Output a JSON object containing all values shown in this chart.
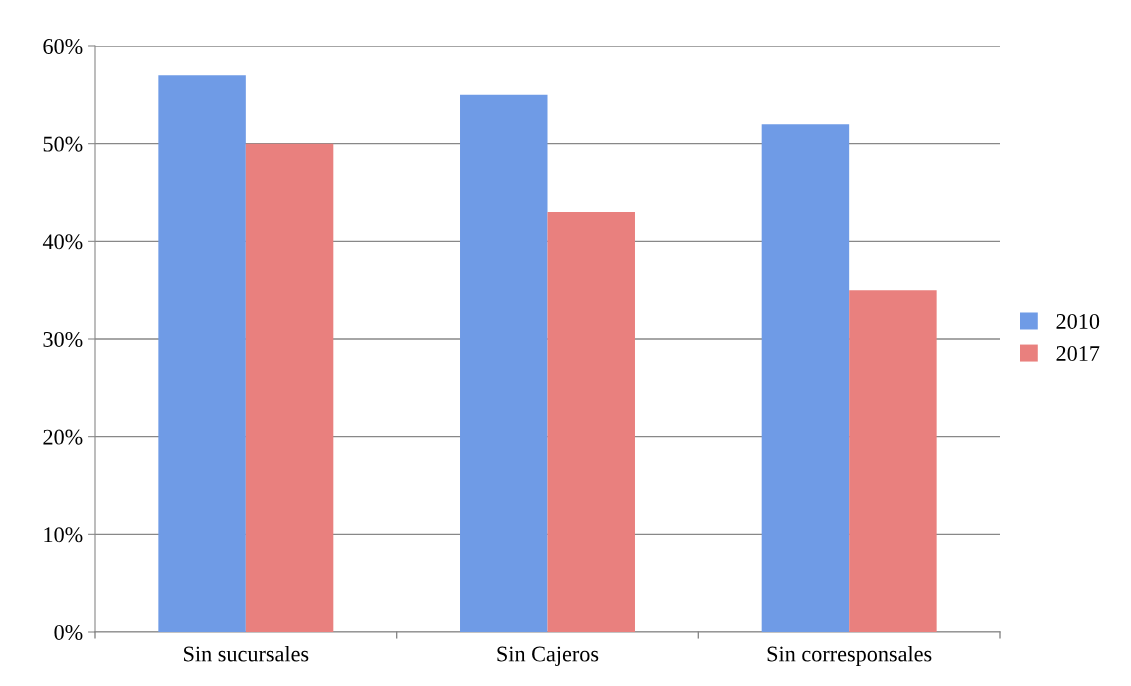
{
  "chart_data": {
    "type": "bar",
    "categories": [
      "Sin sucursales",
      "Sin Cajeros",
      "Sin corresponsales"
    ],
    "series": [
      {
        "name": "2010",
        "color": "#6f9be6",
        "values": [
          57,
          55,
          52
        ]
      },
      {
        "name": "2017",
        "color": "#e9807e",
        "values": [
          50,
          43,
          35
        ]
      }
    ],
    "ylim": [
      0,
      60
    ],
    "yticks": [
      {
        "value": 0,
        "label": "0%"
      },
      {
        "value": 10,
        "label": "10%"
      },
      {
        "value": 20,
        "label": "20%"
      },
      {
        "value": 30,
        "label": "30%"
      },
      {
        "value": 40,
        "label": "40%"
      },
      {
        "value": 50,
        "label": "50%"
      },
      {
        "value": 60,
        "label": "60%"
      }
    ],
    "grid": "y",
    "legend": "right"
  }
}
